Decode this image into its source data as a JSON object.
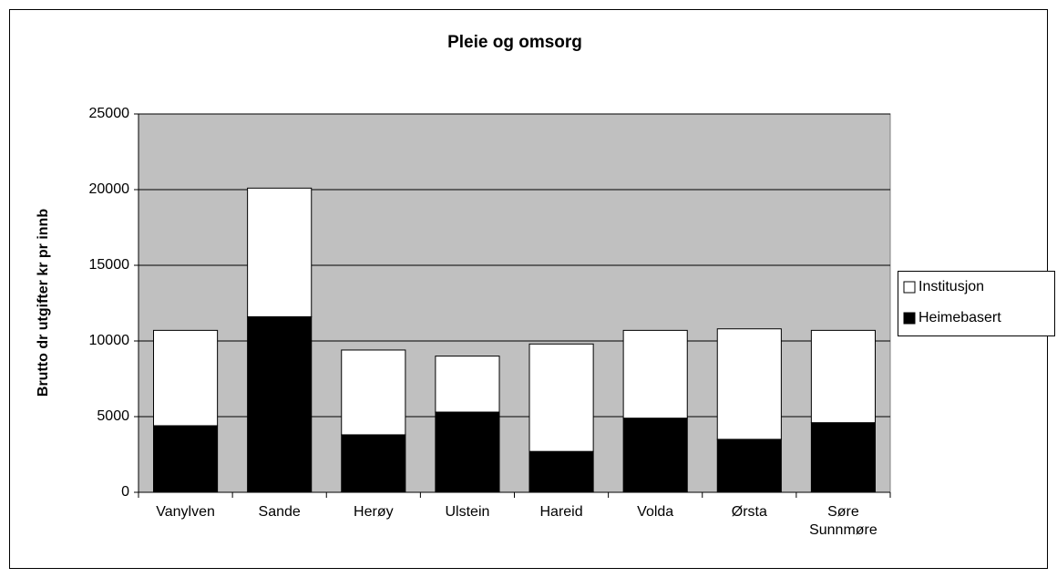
{
  "chart_data": {
    "type": "stacked_bar",
    "title": "Pleie og omsorg",
    "y_label": "Brutto dr utgifter kr pr innb",
    "categories": [
      "Vanylven",
      "Sande",
      "Herøy",
      "Ulstein",
      "Hareid",
      "Volda",
      "Ørsta",
      "Søre Sunnmøre"
    ],
    "series": [
      {
        "name": "Heimebasert",
        "color": "#000000",
        "values": [
          4400,
          11600,
          3800,
          5300,
          2700,
          4900,
          3500,
          4600
        ]
      },
      {
        "name": "Institusjon",
        "color": "#ffffff",
        "values": [
          6300,
          8500,
          5600,
          3700,
          7100,
          5800,
          7300,
          6100
        ]
      }
    ],
    "ylim": [
      0,
      25000
    ],
    "yticks": [
      0,
      5000,
      10000,
      15000,
      20000,
      25000
    ],
    "grid": true,
    "legend": "right"
  }
}
